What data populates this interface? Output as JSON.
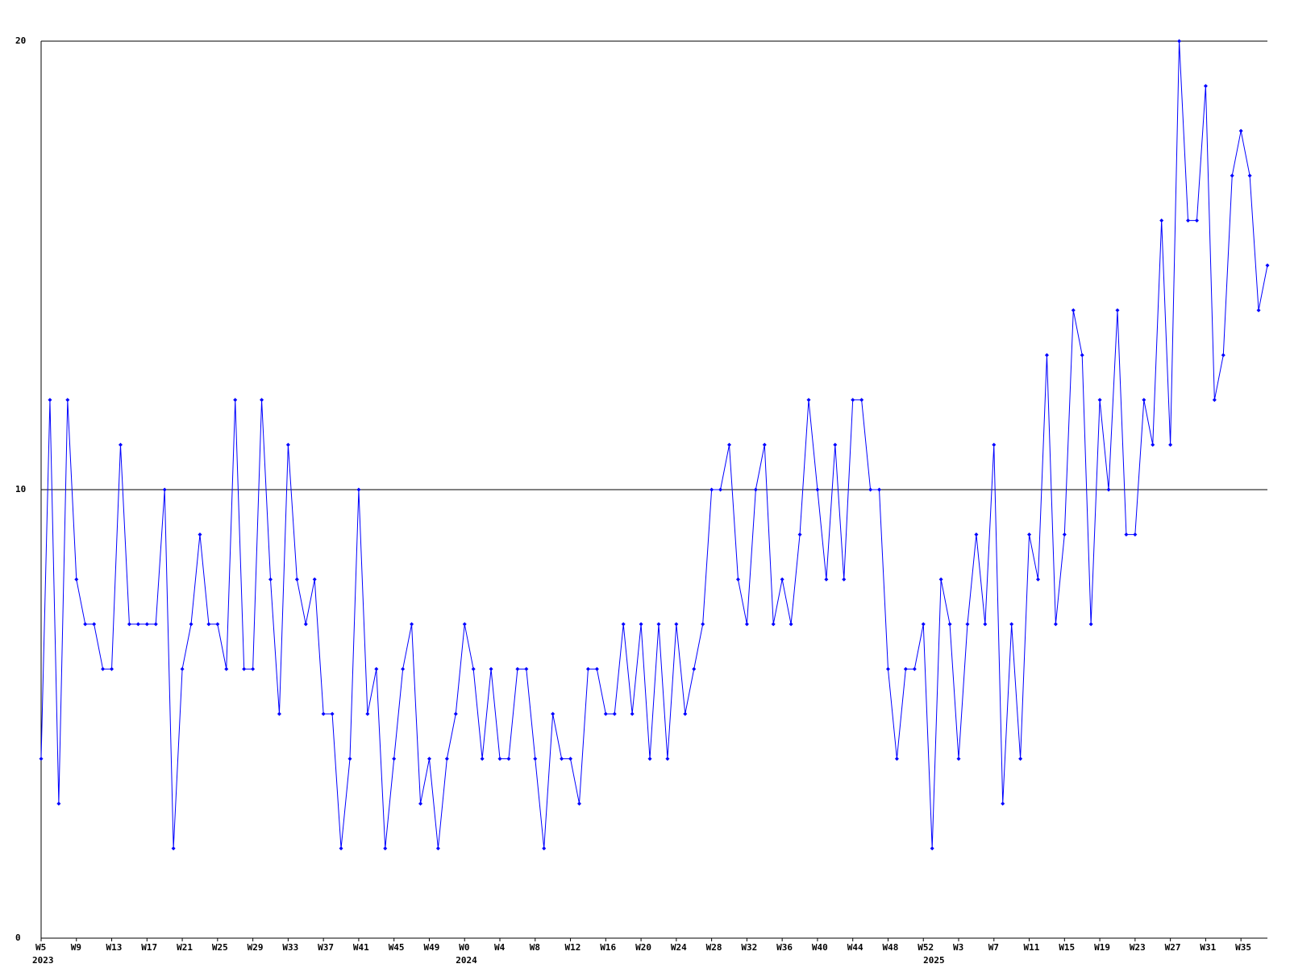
{
  "chart_data": {
    "type": "line",
    "color": "#0000ff",
    "axis_color": "#000000",
    "categories": [
      "W5",
      null,
      null,
      null,
      "W9",
      null,
      null,
      null,
      "W13",
      null,
      null,
      null,
      "W17",
      null,
      null,
      null,
      "W21",
      null,
      null,
      null,
      "W25",
      null,
      null,
      null,
      "W29",
      null,
      null,
      null,
      "W33",
      null,
      null,
      null,
      "W37",
      null,
      null,
      null,
      "W41",
      null,
      null,
      null,
      "W45",
      null,
      null,
      null,
      "W49",
      null,
      null,
      null,
      "W0",
      null,
      null,
      null,
      "W4",
      null,
      null,
      null,
      "W8",
      null,
      null,
      null,
      "W12",
      null,
      null,
      null,
      "W16",
      null,
      null,
      null,
      "W20",
      null,
      null,
      null,
      "W24",
      null,
      null,
      null,
      "W28",
      null,
      null,
      null,
      "W32",
      null,
      null,
      null,
      "W36",
      null,
      null,
      null,
      "W40",
      null,
      null,
      null,
      "W44",
      null,
      null,
      null,
      "W48",
      null,
      null,
      null,
      "W52",
      null,
      null,
      null,
      "W3",
      null,
      null,
      null,
      "W7",
      null,
      null,
      null,
      "W11",
      null,
      null,
      null,
      "W15",
      null,
      null,
      null,
      "W19",
      null,
      null,
      null,
      "W23",
      null,
      null,
      null,
      "W27",
      null,
      null,
      null,
      "W31",
      null,
      null,
      null,
      "W35",
      null,
      null,
      null
    ],
    "x_groups": [
      {
        "label": "2023",
        "start": 0
      },
      {
        "label": "2024",
        "start": 48
      },
      {
        "label": "2025",
        "start": 101
      }
    ],
    "values": [
      4,
      12,
      3,
      12,
      8,
      7,
      7,
      6,
      6,
      11,
      7,
      7,
      7,
      7,
      10,
      2,
      6,
      7,
      9,
      7,
      7,
      6,
      12,
      6,
      6,
      12,
      8,
      5,
      11,
      8,
      7,
      8,
      5,
      5,
      2,
      4,
      10,
      5,
      6,
      2,
      4,
      6,
      7,
      3,
      4,
      2,
      4,
      5,
      7,
      6,
      4,
      6,
      4,
      4,
      6,
      6,
      4,
      2,
      5,
      4,
      4,
      3,
      6,
      6,
      5,
      5,
      7,
      5,
      7,
      4,
      7,
      4,
      7,
      5,
      6,
      7,
      10,
      10,
      11,
      8,
      7,
      10,
      11,
      7,
      8,
      7,
      9,
      12,
      10,
      8,
      11,
      8,
      12,
      12,
      10,
      10,
      6,
      4,
      6,
      6,
      7,
      2,
      8,
      7,
      4,
      7,
      9,
      7,
      11,
      3,
      7,
      4,
      9,
      8,
      13,
      7,
      9,
      14,
      13,
      7,
      12,
      10,
      14,
      9,
      9,
      12,
      11,
      16,
      11,
      20,
      16,
      16,
      19,
      12,
      13,
      17,
      18,
      17,
      14,
      15
    ],
    "ylim": [
      0,
      20
    ],
    "yticks": [
      0,
      10,
      20
    ],
    "grid": true
  }
}
